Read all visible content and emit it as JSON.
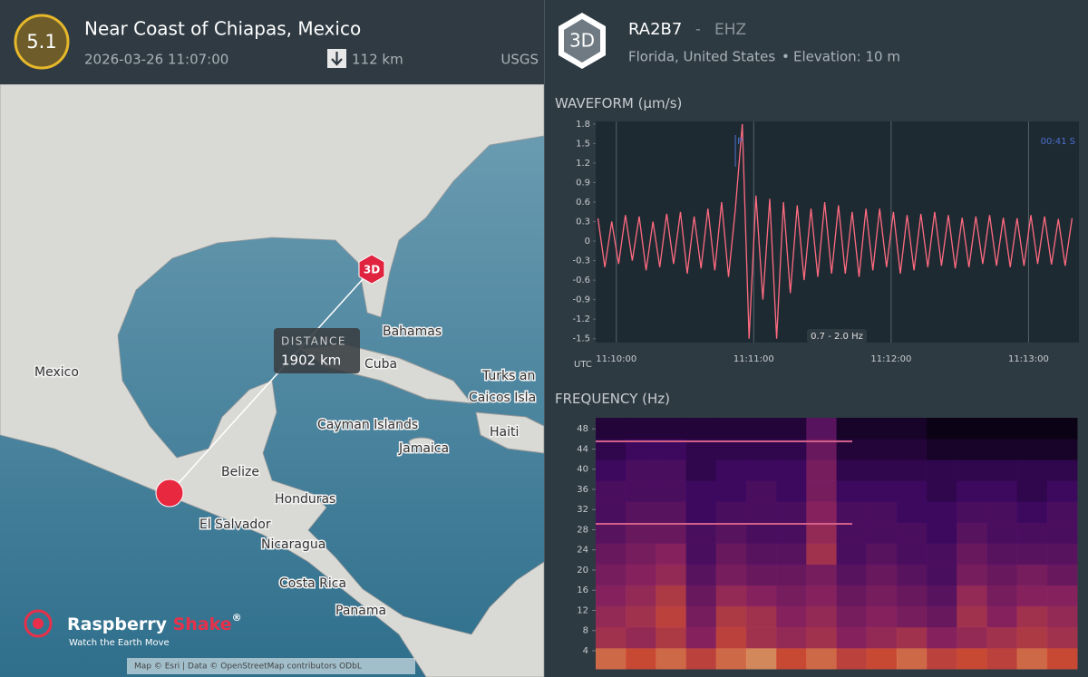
{
  "header": {
    "magnitude": "5.1",
    "title": "Near Coast of Chiapas, Mexico",
    "datetime": "2026-03-26 11:07:00",
    "depth": "112 km",
    "source": "USGS"
  },
  "station": {
    "badge": "3D",
    "code": "RA2B7",
    "separator": "-",
    "channel": "EHZ",
    "location": "Florida, United States",
    "bullet": "•",
    "elevation": "Elevation: 10 m"
  },
  "map": {
    "labels": [
      "Mexico",
      "Bahamas",
      "Cuba",
      "Turks an",
      "Caicos Isla",
      "Cayman Islands",
      "Haiti",
      "Jamaica",
      "Belize",
      "Honduras",
      "El Salvador",
      "Nicaragua",
      "Costa Rica",
      "Panama"
    ],
    "distance_label": "DISTANCE",
    "distance": "1902 km",
    "station_marker": "3D",
    "logo": {
      "name": "Raspberry",
      "name2": "Shake",
      "registered": "®",
      "tagline": "Watch the Earth Move"
    },
    "attribution": "Map © Esri | Data © OpenStreetMap contributors ODbL"
  },
  "chart_data": [
    {
      "type": "line",
      "title": "WAVEFORM",
      "unit": "(µm/s)",
      "color": "#ff6b80",
      "x_unit": "UTC",
      "filter": "0.7 - 2.0 Hz",
      "phase": {
        "label": "P",
        "x": "11:10:52"
      },
      "annotation": "00:41 S",
      "xlim": [
        "11:09:51",
        "11:13:22"
      ],
      "xticks": [
        "11:10:00",
        "11:11:00",
        "11:12:00",
        "11:13:00"
      ],
      "ylim": [
        -1.56,
        1.84
      ],
      "yticks": [
        1.8,
        1.5,
        1.2,
        0.9,
        0.6,
        0.3,
        0,
        -0.3,
        -0.6,
        -0.9,
        -1.2,
        -1.5
      ],
      "x": [
        "11:09:52",
        "11:09:55",
        "11:09:58",
        "11:10:01",
        "11:10:04",
        "11:10:07",
        "11:10:10",
        "11:10:13",
        "11:10:16",
        "11:10:19",
        "11:10:22",
        "11:10:25",
        "11:10:28",
        "11:10:31",
        "11:10:34",
        "11:10:37",
        "11:10:40",
        "11:10:43",
        "11:10:46",
        "11:10:49",
        "11:10:52",
        "11:10:55",
        "11:10:58",
        "11:11:01",
        "11:11:04",
        "11:11:07",
        "11:11:10",
        "11:11:13",
        "11:11:16",
        "11:11:19",
        "11:11:22",
        "11:11:25",
        "11:11:28",
        "11:11:31",
        "11:11:34",
        "11:11:37",
        "11:11:40",
        "11:11:43",
        "11:11:46",
        "11:11:49",
        "11:11:52",
        "11:11:55",
        "11:11:58",
        "11:12:01",
        "11:12:04",
        "11:12:07",
        "11:12:10",
        "11:12:13",
        "11:12:16",
        "11:12:19",
        "11:12:22",
        "11:12:25",
        "11:12:28",
        "11:12:31",
        "11:12:34",
        "11:12:37",
        "11:12:40",
        "11:12:43",
        "11:12:46",
        "11:12:49",
        "11:12:52",
        "11:12:55",
        "11:12:58",
        "11:13:01",
        "11:13:04",
        "11:13:07",
        "11:13:10",
        "11:13:13",
        "11:13:16",
        "11:13:19"
      ],
      "values": [
        0.35,
        -0.4,
        0.3,
        -0.35,
        0.4,
        -0.3,
        0.38,
        -0.45,
        0.3,
        -0.4,
        0.42,
        -0.35,
        0.45,
        -0.5,
        0.38,
        -0.42,
        0.5,
        -0.45,
        0.6,
        -0.55,
        0.5,
        1.8,
        -1.5,
        0.7,
        -0.9,
        0.65,
        -1.5,
        0.6,
        -0.8,
        0.55,
        -0.6,
        0.5,
        -0.55,
        0.6,
        -0.5,
        0.55,
        -0.5,
        0.45,
        -0.55,
        0.5,
        -0.45,
        0.5,
        -0.4,
        0.45,
        -0.5,
        0.4,
        -0.45,
        0.42,
        -0.4,
        0.45,
        -0.38,
        0.4,
        -0.42,
        0.36,
        -0.4,
        0.38,
        -0.35,
        0.4,
        -0.38,
        0.36,
        -0.4,
        0.35,
        -0.38,
        0.4,
        -0.35,
        0.38,
        -0.36,
        0.34,
        -0.38,
        0.35
      ]
    },
    {
      "type": "heatmap",
      "title": "FREQUENCY",
      "unit": "(Hz)",
      "ylim": [
        0.4,
        50.2
      ],
      "yticks": [
        48,
        44,
        40,
        36,
        32,
        28,
        24,
        20,
        16,
        12,
        8,
        4
      ],
      "values": [
        [
          0.8,
          0.75,
          0.8,
          0.7,
          0.8,
          0.85,
          0.75,
          0.8,
          0.7,
          0.75,
          0.8,
          0.7,
          0.75,
          0.7,
          0.8,
          0.75
        ],
        [
          0.6,
          0.55,
          0.65,
          0.5,
          0.7,
          0.6,
          0.55,
          0.6,
          0.5,
          0.55,
          0.6,
          0.5,
          0.55,
          0.6,
          0.65,
          0.6
        ],
        [
          0.55,
          0.6,
          0.7,
          0.45,
          0.65,
          0.6,
          0.5,
          0.55,
          0.45,
          0.5,
          0.45,
          0.4,
          0.6,
          0.5,
          0.6,
          0.55
        ],
        [
          0.5,
          0.55,
          0.65,
          0.4,
          0.55,
          0.5,
          0.45,
          0.5,
          0.4,
          0.45,
          0.4,
          0.35,
          0.55,
          0.45,
          0.5,
          0.5
        ],
        [
          0.45,
          0.5,
          0.55,
          0.35,
          0.45,
          0.4,
          0.4,
          0.45,
          0.35,
          0.4,
          0.35,
          0.3,
          0.45,
          0.4,
          0.45,
          0.4
        ],
        [
          0.4,
          0.45,
          0.5,
          0.3,
          0.4,
          0.35,
          0.35,
          0.6,
          0.3,
          0.35,
          0.3,
          0.3,
          0.4,
          0.35,
          0.35,
          0.35
        ],
        [
          0.35,
          0.4,
          0.4,
          0.3,
          0.35,
          0.3,
          0.3,
          0.55,
          0.3,
          0.3,
          0.3,
          0.25,
          0.35,
          0.3,
          0.3,
          0.3
        ],
        [
          0.3,
          0.35,
          0.35,
          0.25,
          0.3,
          0.3,
          0.3,
          0.5,
          0.3,
          0.3,
          0.25,
          0.25,
          0.3,
          0.3,
          0.25,
          0.3
        ],
        [
          0.3,
          0.3,
          0.3,
          0.25,
          0.25,
          0.3,
          0.25,
          0.45,
          0.25,
          0.25,
          0.25,
          0.2,
          0.25,
          0.25,
          0.2,
          0.25
        ],
        [
          0.25,
          0.3,
          0.3,
          0.2,
          0.25,
          0.25,
          0.25,
          0.45,
          0.2,
          0.2,
          0.2,
          0.2,
          0.2,
          0.2,
          0.2,
          0.2
        ],
        [
          0.2,
          0.25,
          0.25,
          0.2,
          0.2,
          0.2,
          0.2,
          0.4,
          0.15,
          0.15,
          0.15,
          0.1,
          0.1,
          0.1,
          0.1,
          0.1
        ],
        [
          0.15,
          0.15,
          0.15,
          0.15,
          0.15,
          0.15,
          0.15,
          0.35,
          0.1,
          0.1,
          0.1,
          0.05,
          0.05,
          0.05,
          0.05,
          0.05
        ]
      ]
    }
  ]
}
